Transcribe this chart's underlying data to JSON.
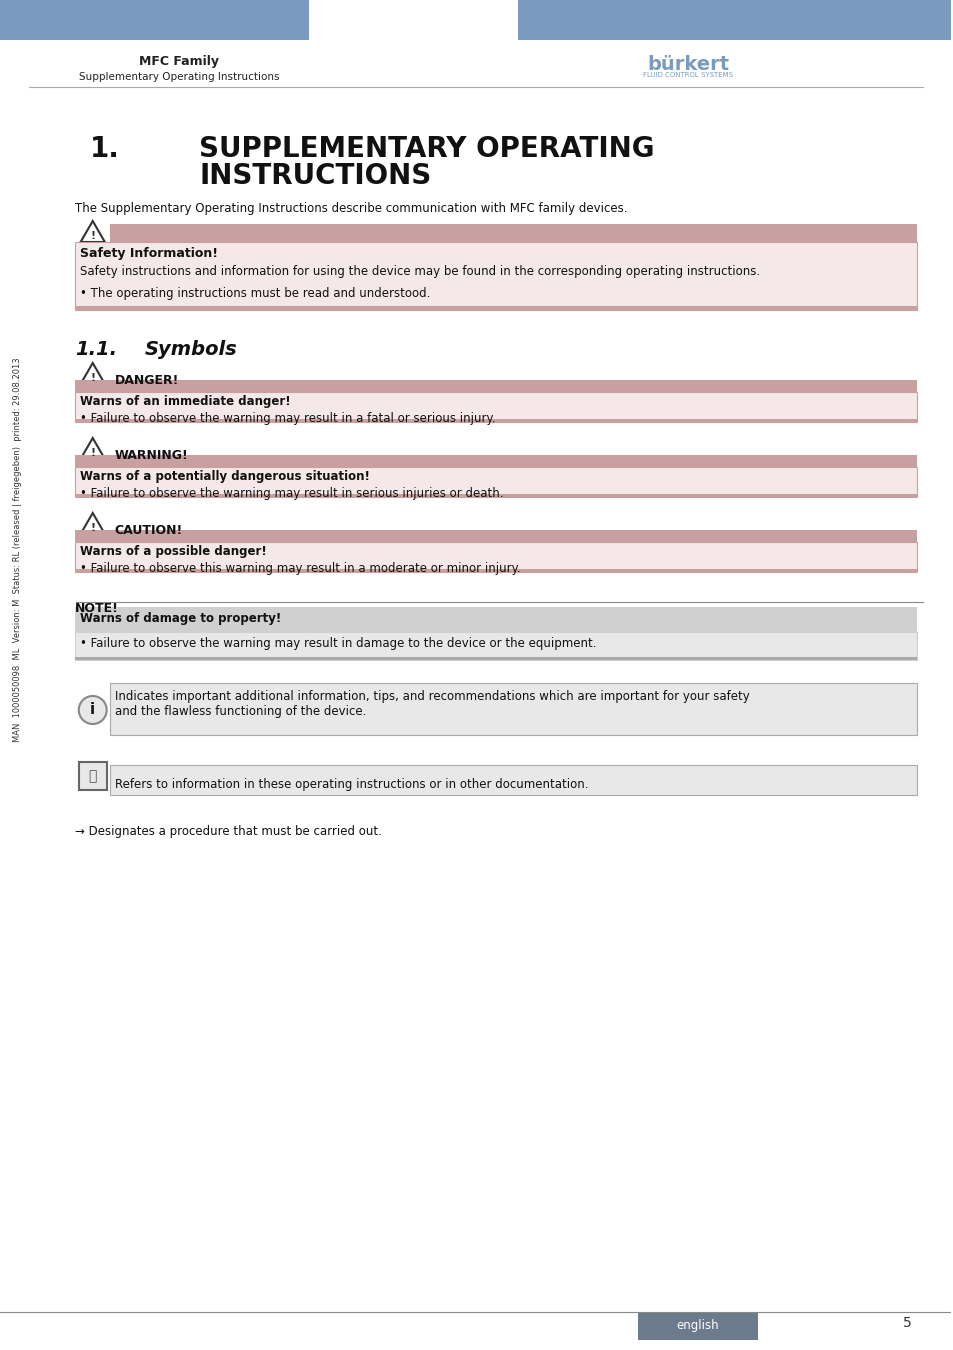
{
  "page_bg": "#ffffff",
  "header_bar_color": "#7a9bbf",
  "header_left_text": "MFC Family",
  "header_sub_text": "Supplementary Operating Instructions",
  "section_title": "1.    SUPPLEMENTARY OPERATING\n        INSTRUCTIONS",
  "intro_text": "The Supplementary Operating Instructions describe communication with MFC family devices.",
  "safety_header_bg": "#c9a0a0",
  "safety_box_bg": "#f5e8e8",
  "safety_border_color": "#c9a0a0",
  "safety_title": "Safety Information!",
  "safety_body": "Safety instructions and information for using the device may be found in the corresponding operating instructions.",
  "safety_bullet": "• The operating instructions must be read and understood.",
  "subsection_title": "1.1.    Symbols",
  "danger_header_bg": "#c9a0a0",
  "danger_box_bg": "#f5e8e8",
  "danger_label": "DANGER!",
  "danger_subheader": "Warns of an immediate danger!",
  "danger_body": "• Failure to observe the warning may result in a fatal or serious injury.",
  "warning_label": "WARNING!",
  "warning_subheader": "Warns of a potentially dangerous situation!",
  "warning_body": "• Failure to observe the warning may result in serious injuries or death.",
  "caution_label": "CAUTION!",
  "caution_subheader": "Warns of a possible danger!",
  "caution_body": "• Failure to observe this warning may result in a moderate or minor injury.",
  "note_label": "NOTE!",
  "note_header_bg": "#d0d0d0",
  "note_box_bg": "#e8e8e8",
  "note_subheader": "Warns of damage to property!",
  "note_body": "• Failure to observe the warning may result in damage to the device or the equipment.",
  "info_box_bg": "#e8e8e8",
  "info_text": "Indicates important additional information, tips, and recommendations which are important for your safety\nand the flawless functioning of the device.",
  "ref_text": "Refers to information in these operating instructions or in other documentation.",
  "arrow_text": "→ Designates a procedure that must be carried out.",
  "footer_box_color": "#6b7b8d",
  "footer_text": "english",
  "page_number": "5",
  "side_text": "MAN  1000050098  ML  Version: M  Status: RL (released | freigegeben)  printed: 29.08.2013"
}
